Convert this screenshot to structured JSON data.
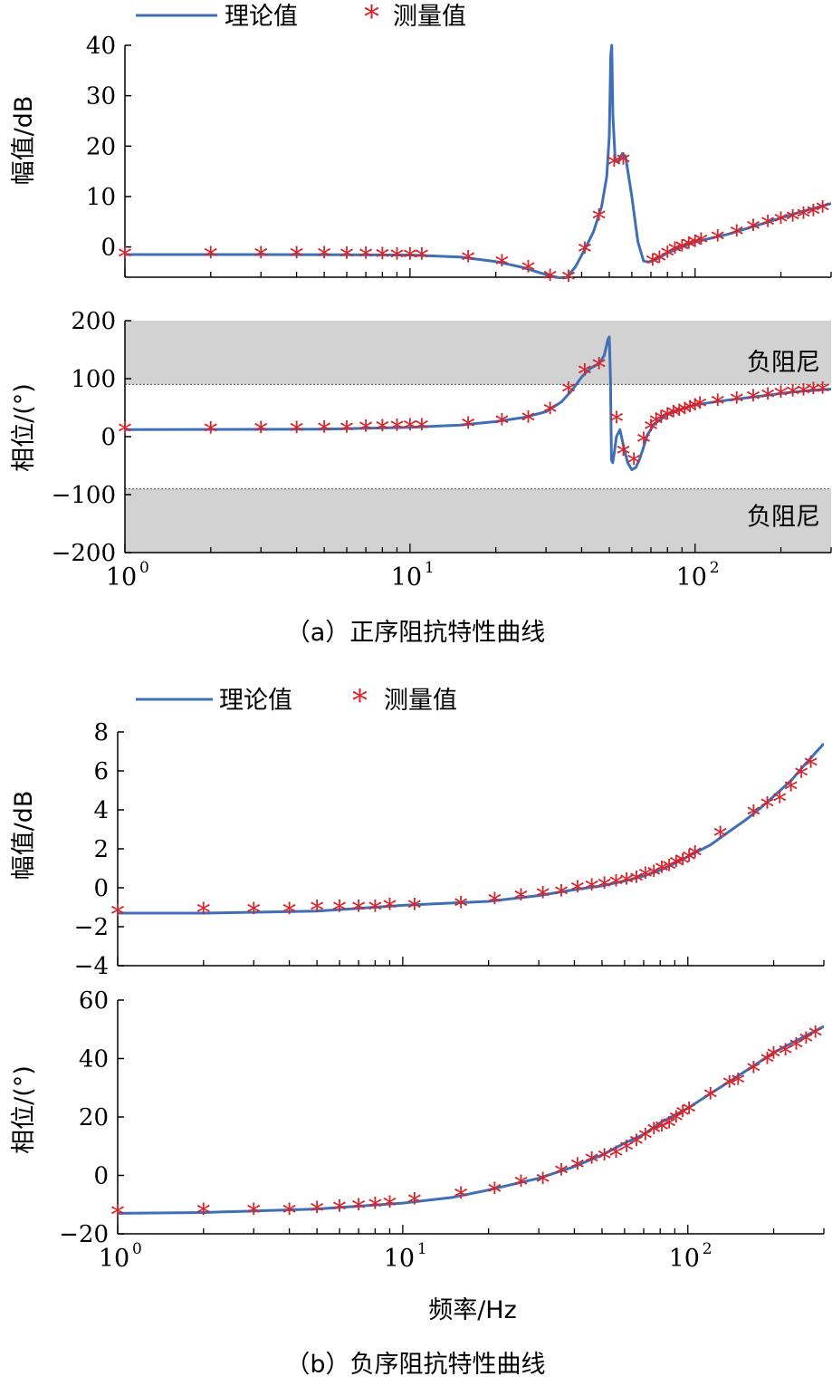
{
  "colors": {
    "theory_line": "#3f6fb5",
    "measured_marker": "#d8232a",
    "shade": "#d2d2d2",
    "axis": "#000000"
  },
  "legend": {
    "theory": "理论值",
    "measured": "测量值"
  },
  "captions": {
    "a": "（a）正序阻抗特性曲线",
    "b": "（b）负序阻抗特性曲线"
  },
  "xlabel": "频率/Hz",
  "chart_data": [
    {
      "id": "a-mag",
      "type": "line",
      "xscale": "log",
      "xlim": [
        1,
        300
      ],
      "ylim": [
        -6,
        40
      ],
      "ylabel": "幅值/dB",
      "yticks": [
        "40",
        "30",
        "20",
        "10",
        "0"
      ],
      "ytick_values": [
        40,
        30,
        20,
        10,
        0
      ],
      "xticks": [],
      "series": [
        {
          "name": "理论值",
          "style": "line",
          "x": [
            1,
            3,
            10,
            15,
            20,
            25,
            30,
            35,
            38,
            41,
            44,
            47,
            49,
            50,
            50.6,
            51,
            51.5,
            52.5,
            54,
            55.5,
            57,
            60,
            63,
            66,
            69,
            73,
            80,
            90,
            100,
            130,
            170,
            220,
            300
          ],
          "y": [
            -1.5,
            -1.5,
            -1.6,
            -2,
            -2.9,
            -4.1,
            -5.5,
            -6.4,
            -4,
            -0.5,
            3,
            8,
            14,
            22,
            38,
            40,
            26,
            17,
            17,
            18.5,
            18,
            10,
            1,
            -2.8,
            -3,
            -2.5,
            -1.2,
            0,
            1,
            2.5,
            4.5,
            6.5,
            8.6
          ]
        },
        {
          "name": "测量值",
          "style": "marker",
          "x": [
            1,
            2,
            3,
            4,
            5,
            6,
            7,
            8,
            9,
            10,
            11,
            16,
            21,
            26,
            31,
            36,
            41,
            46,
            52,
            56,
            71,
            75,
            80,
            85,
            90,
            95,
            100,
            105,
            120,
            140,
            160,
            180,
            200,
            220,
            240,
            260,
            280
          ],
          "y": [
            -1.8,
            -1.7,
            -1.7,
            -1.7,
            -1.7,
            -1.8,
            -1.8,
            -1.9,
            -2,
            -2,
            -2,
            -2.5,
            -3.3,
            -4.5,
            -6.2,
            -6.4,
            -0.8,
            5.8,
            16.5,
            16.9,
            -3.1,
            -2.6,
            -1.6,
            -0.8,
            -0.3,
            0.2,
            0.6,
            1,
            1.6,
            2.6,
            3.7,
            4.5,
            5.1,
            5.6,
            6.1,
            6.7,
            7.4
          ]
        }
      ]
    },
    {
      "id": "a-phase",
      "type": "line",
      "xscale": "log",
      "xlim": [
        1,
        300
      ],
      "ylim": [
        -200,
        200
      ],
      "ylabel": "相位/(°)",
      "yticks": [
        "200",
        "100",
        "0",
        "−100",
        "−200"
      ],
      "ytick_values": [
        200,
        100,
        0,
        -100,
        -200
      ],
      "xticks": [
        "10",
        "10",
        "10"
      ],
      "xtick_exponents": [
        "0",
        "1",
        "2"
      ],
      "xtick_values": [
        1,
        10,
        100
      ],
      "bands": [
        {
          "from": 90,
          "to": 200,
          "label": "负阻尼"
        },
        {
          "from": -200,
          "to": -90,
          "label": "负阻尼"
        }
      ],
      "series": [
        {
          "name": "理论值",
          "style": "line",
          "x": [
            1,
            5,
            10,
            15,
            20,
            25,
            30,
            34,
            37,
            40,
            43,
            46,
            48,
            49.5,
            50,
            50.5,
            50.9,
            51.4,
            52,
            53,
            54.5,
            56,
            58,
            60,
            62,
            64,
            66,
            68,
            72,
            80,
            90,
            100,
            130,
            170,
            220,
            300
          ],
          "y": [
            12,
            13,
            16,
            20,
            26,
            33,
            43,
            60,
            80,
            103,
            118,
            126,
            140,
            168,
            172,
            100,
            -40,
            -45,
            -30,
            0,
            12,
            -15,
            -45,
            -57,
            -53,
            -38,
            -18,
            3,
            22,
            38,
            48,
            55,
            63,
            70,
            77,
            82
          ]
        },
        {
          "name": "测量值",
          "style": "marker",
          "x": [
            1,
            2,
            3,
            4,
            5,
            6,
            7,
            8,
            9,
            10,
            11,
            16,
            21,
            26,
            31,
            36,
            41,
            46,
            53,
            56,
            61,
            66,
            70,
            73,
            76,
            80,
            84,
            88,
            92,
            96,
            100,
            104,
            120,
            140,
            160,
            180,
            200,
            220,
            240,
            260,
            280
          ],
          "y": [
            10,
            10,
            11,
            11,
            12,
            12,
            13,
            14,
            15,
            16,
            16,
            19,
            24,
            29,
            44,
            79,
            110,
            121,
            28,
            -28,
            -44,
            -8,
            14,
            24,
            30,
            34,
            38,
            41,
            44,
            47,
            50,
            53,
            58,
            62,
            66,
            69,
            72,
            74,
            76,
            78,
            79
          ]
        }
      ]
    },
    {
      "id": "b-mag",
      "type": "line",
      "xscale": "log",
      "xlim": [
        1,
        300
      ],
      "ylim": [
        -4,
        8
      ],
      "ylabel": "幅值/dB",
      "yticks": [
        "8",
        "6",
        "4",
        "2",
        "0",
        "−2",
        "−4"
      ],
      "ytick_values": [
        8,
        6,
        4,
        2,
        0,
        -2,
        -4
      ],
      "xticks": [],
      "series": [
        {
          "name": "理论值",
          "style": "line",
          "x": [
            1,
            2,
            5,
            10,
            20,
            30,
            40,
            50,
            60,
            70,
            80,
            90,
            100,
            120,
            140,
            160,
            180,
            200,
            230,
            260,
            300
          ],
          "y": [
            -1.3,
            -1.3,
            -1.2,
            -0.9,
            -0.7,
            -0.4,
            -0.1,
            0.1,
            0.35,
            0.6,
            0.9,
            1.25,
            1.6,
            2.2,
            2.9,
            3.5,
            4.1,
            4.7,
            5.5,
            6.4,
            7.4
          ]
        },
        {
          "name": "测量值",
          "style": "marker",
          "x": [
            1,
            2,
            3,
            4,
            5,
            6,
            7,
            8,
            9,
            11,
            16,
            21,
            26,
            31,
            36,
            41,
            46,
            51,
            56,
            61,
            66,
            71,
            76,
            81,
            86,
            91,
            96,
            101,
            106,
            130,
            170,
            190,
            210,
            230,
            250,
            270
          ],
          "y": [
            -1.3,
            -1.2,
            -1.2,
            -1.2,
            -1.1,
            -1.1,
            -1.1,
            -1.1,
            -1,
            -1,
            -0.9,
            -0.7,
            -0.5,
            -0.4,
            -0.3,
            -0.1,
            0,
            0.1,
            0.2,
            0.3,
            0.4,
            0.6,
            0.7,
            0.9,
            1,
            1.2,
            1.3,
            1.5,
            1.7,
            2.7,
            3.8,
            4.2,
            4.5,
            5.1,
            5.8,
            6.3
          ]
        }
      ]
    },
    {
      "id": "b-phase",
      "type": "line",
      "xscale": "log",
      "xlim": [
        1,
        300
      ],
      "ylim": [
        -20,
        60
      ],
      "ylabel": "相位/(°)",
      "yticks": [
        "60",
        "40",
        "20",
        "0",
        "−20"
      ],
      "ytick_values": [
        60,
        40,
        20,
        0,
        -20
      ],
      "xticks": [
        "10",
        "10",
        "10"
      ],
      "xtick_exponents": [
        "0",
        "1",
        "2"
      ],
      "xtick_values": [
        1,
        10,
        100
      ],
      "series": [
        {
          "name": "理论值",
          "style": "line",
          "x": [
            1,
            2,
            5,
            10,
            15,
            20,
            30,
            40,
            50,
            60,
            70,
            80,
            100,
            120,
            150,
            200,
            250,
            300
          ],
          "y": [
            -13,
            -12.7,
            -11.5,
            -9.5,
            -7.5,
            -5,
            -1,
            3,
            7,
            11,
            14,
            18,
            23,
            28,
            34,
            42,
            47,
            51
          ]
        },
        {
          "name": "测量值",
          "style": "marker",
          "x": [
            1,
            2,
            3,
            4,
            5,
            6,
            7,
            8,
            9,
            11,
            16,
            21,
            26,
            31,
            36,
            41,
            46,
            51,
            56,
            61,
            66,
            71,
            76,
            81,
            86,
            91,
            96,
            101,
            120,
            140,
            150,
            170,
            190,
            200,
            220,
            240,
            260,
            280
          ],
          "y": [
            -13,
            -12.5,
            -12.5,
            -12.5,
            -12,
            -11.5,
            -11,
            -10.5,
            -10,
            -9,
            -7,
            -5.5,
            -3,
            -2,
            1,
            3,
            5,
            6,
            7,
            9,
            11,
            13,
            15,
            16,
            17,
            19,
            21,
            22,
            27,
            31,
            32,
            36,
            39,
            41,
            42,
            44,
            46,
            48
          ]
        }
      ]
    }
  ]
}
